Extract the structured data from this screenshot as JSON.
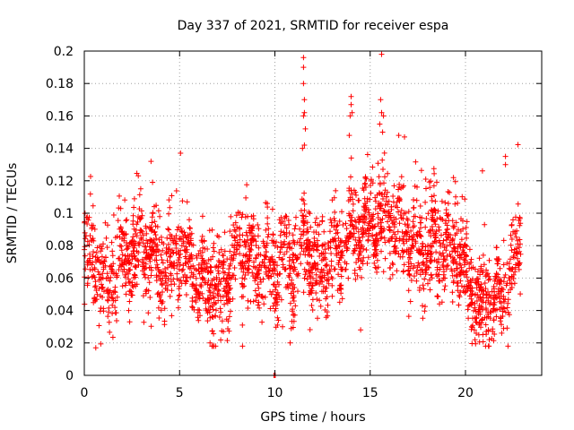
{
  "chart_data": {
    "type": "scatter",
    "title": "Day 337 of 2021, SRMTID for receiver espa",
    "xlabel": "GPS time / hours",
    "ylabel": "SRMTID / TECUs",
    "xlim": [
      0,
      24
    ],
    "ylim": [
      0,
      0.2
    ],
    "xticks": [
      0,
      5,
      10,
      15,
      20
    ],
    "xtick_labels": [
      "0",
      "5",
      "10",
      "15",
      "20"
    ],
    "yticks": [
      0,
      0.02,
      0.04,
      0.06,
      0.08,
      0.1,
      0.12,
      0.14,
      0.16,
      0.18,
      0.2
    ],
    "ytick_labels": [
      "0",
      "0.02",
      "0.04",
      "0.06",
      "0.08",
      "0.1",
      "0.12",
      "0.14",
      "0.16",
      "0.18",
      "0.2"
    ],
    "grid": true,
    "marker": "+",
    "marker_color": "#ff0000",
    "series": [
      {
        "name": "SRMTID",
        "x_range": [
          0,
          22.9
        ],
        "point_count": 2600,
        "value_range_typical": [
          0.03,
          0.12
        ],
        "trend": [
          {
            "x": 0,
            "y": 0.075
          },
          {
            "x": 0.5,
            "y": 0.078
          },
          {
            "x": 1,
            "y": 0.055
          },
          {
            "x": 1.5,
            "y": 0.06
          },
          {
            "x": 2,
            "y": 0.072
          },
          {
            "x": 2.5,
            "y": 0.075
          },
          {
            "x": 3,
            "y": 0.08
          },
          {
            "x": 3.5,
            "y": 0.078
          },
          {
            "x": 4,
            "y": 0.065
          },
          {
            "x": 4.5,
            "y": 0.072
          },
          {
            "x": 5,
            "y": 0.078
          },
          {
            "x": 5.5,
            "y": 0.065
          },
          {
            "x": 6,
            "y": 0.06
          },
          {
            "x": 6.5,
            "y": 0.058
          },
          {
            "x": 7,
            "y": 0.05
          },
          {
            "x": 7.5,
            "y": 0.06
          },
          {
            "x": 8,
            "y": 0.08
          },
          {
            "x": 8.5,
            "y": 0.075
          },
          {
            "x": 9,
            "y": 0.065
          },
          {
            "x": 9.5,
            "y": 0.07
          },
          {
            "x": 10,
            "y": 0.06
          },
          {
            "x": 10.5,
            "y": 0.075
          },
          {
            "x": 11,
            "y": 0.065
          },
          {
            "x": 11.5,
            "y": 0.085
          },
          {
            "x": 12,
            "y": 0.07
          },
          {
            "x": 12.5,
            "y": 0.065
          },
          {
            "x": 13,
            "y": 0.072
          },
          {
            "x": 13.5,
            "y": 0.078
          },
          {
            "x": 14,
            "y": 0.085
          },
          {
            "x": 14.5,
            "y": 0.09
          },
          {
            "x": 15,
            "y": 0.095
          },
          {
            "x": 15.5,
            "y": 0.1
          },
          {
            "x": 16,
            "y": 0.095
          },
          {
            "x": 16.5,
            "y": 0.09
          },
          {
            "x": 17,
            "y": 0.085
          },
          {
            "x": 17.5,
            "y": 0.075
          },
          {
            "x": 18,
            "y": 0.08
          },
          {
            "x": 18.5,
            "y": 0.085
          },
          {
            "x": 19,
            "y": 0.075
          },
          {
            "x": 19.5,
            "y": 0.08
          },
          {
            "x": 20,
            "y": 0.07
          },
          {
            "x": 20.5,
            "y": 0.045
          },
          {
            "x": 21,
            "y": 0.042
          },
          {
            "x": 21.5,
            "y": 0.048
          },
          {
            "x": 22,
            "y": 0.05
          },
          {
            "x": 22.5,
            "y": 0.07
          },
          {
            "x": 22.9,
            "y": 0.075
          }
        ],
        "spikes": [
          {
            "x": 11.5,
            "y": 0.196
          },
          {
            "x": 11.5,
            "y": 0.19
          },
          {
            "x": 11.5,
            "y": 0.18
          },
          {
            "x": 11.55,
            "y": 0.17
          },
          {
            "x": 11.55,
            "y": 0.162
          },
          {
            "x": 11.5,
            "y": 0.16
          },
          {
            "x": 11.6,
            "y": 0.152
          },
          {
            "x": 11.45,
            "y": 0.14
          },
          {
            "x": 11.55,
            "y": 0.142
          },
          {
            "x": 14,
            "y": 0.172
          },
          {
            "x": 14,
            "y": 0.167
          },
          {
            "x": 13.95,
            "y": 0.16
          },
          {
            "x": 14.05,
            "y": 0.162
          },
          {
            "x": 13.9,
            "y": 0.148
          },
          {
            "x": 15.6,
            "y": 0.198
          },
          {
            "x": 15.55,
            "y": 0.17
          },
          {
            "x": 15.6,
            "y": 0.162
          },
          {
            "x": 15.7,
            "y": 0.16
          },
          {
            "x": 15.5,
            "y": 0.155
          },
          {
            "x": 15.65,
            "y": 0.15
          },
          {
            "x": 3.5,
            "y": 0.132
          },
          {
            "x": 5.05,
            "y": 0.137
          },
          {
            "x": 22.1,
            "y": 0.135
          },
          {
            "x": 22.1,
            "y": 0.13
          },
          {
            "x": 16.5,
            "y": 0.148
          },
          {
            "x": 16.8,
            "y": 0.147
          }
        ],
        "low_outliers": [
          {
            "x": 0.6,
            "y": 0.017
          },
          {
            "x": 8.3,
            "y": 0.018
          },
          {
            "x": 10.4,
            "y": 0.03
          },
          {
            "x": 10.8,
            "y": 0.02
          },
          {
            "x": 20.5,
            "y": 0.022
          },
          {
            "x": 20.7,
            "y": 0.025
          },
          {
            "x": 7.3,
            "y": 0.027
          },
          {
            "x": 14.5,
            "y": 0.028
          },
          {
            "x": 21.9,
            "y": 0.026
          }
        ],
        "zero_points": [
          {
            "x": 9.95,
            "y": 0
          },
          {
            "x": 10.0,
            "y": 0
          },
          {
            "x": 10.02,
            "y": 0
          }
        ]
      }
    ]
  }
}
